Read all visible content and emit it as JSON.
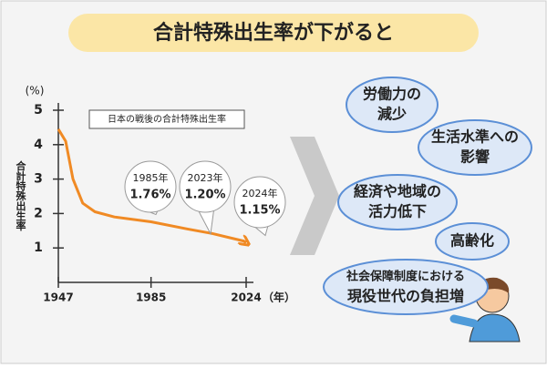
{
  "title": "合計特殊出生率が下がると",
  "chart_data": {
    "type": "line",
    "legend_box": "日本の戦後の合計特殊出生率",
    "y_unit": "(%)",
    "y_label": "合計特殊出生率",
    "x_unit": "（年）",
    "x": [
      1947,
      1950,
      1953,
      1957,
      1962,
      1970,
      1985,
      2000,
      2010,
      2023,
      2024
    ],
    "values": [
      4.45,
      4.1,
      3.0,
      2.3,
      2.05,
      1.9,
      1.76,
      1.55,
      1.42,
      1.2,
      1.15
    ],
    "color": "#f08a24",
    "xlim": [
      1947,
      2024
    ],
    "xticks": [
      1947,
      1985,
      2024
    ],
    "ylim": [
      0,
      5
    ],
    "yticks": [
      1,
      2,
      3,
      4,
      5
    ],
    "callouts": [
      {
        "year": "1985年",
        "value": 1.76,
        "value_label": "1.76%"
      },
      {
        "year": "2023年",
        "value": 1.2,
        "value_label": "1.20%"
      },
      {
        "year": "2024年",
        "value": 1.15,
        "value_label": "1.15%"
      }
    ]
  },
  "effects": [
    {
      "lines": [
        "労働力の",
        "減少"
      ]
    },
    {
      "lines": [
        "生活水準への",
        "影響"
      ]
    },
    {
      "lines": [
        "経済や地域の",
        "活力低下"
      ]
    },
    {
      "lines": [
        "高齢化"
      ]
    },
    {
      "lines": [
        "社会保障制度における",
        "現役世代の負担増"
      ]
    }
  ]
}
